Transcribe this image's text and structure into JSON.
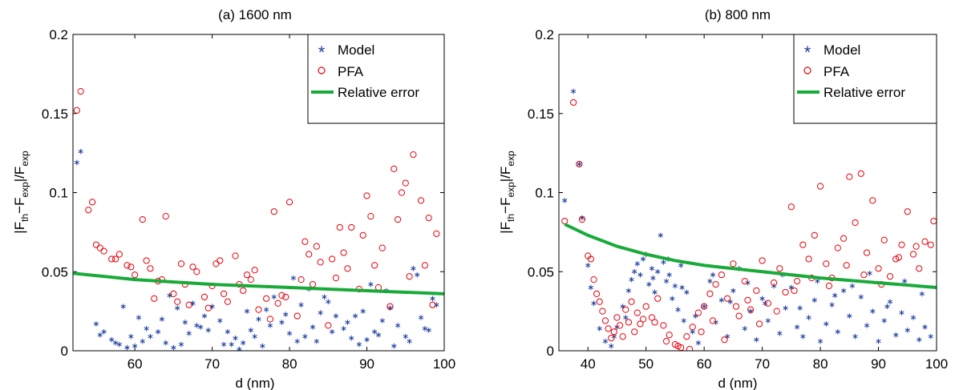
{
  "figure": {
    "panels": [
      {
        "title": "(a) 1600 nm",
        "xlabel": "d (nm)",
        "ylabel_main": "|F",
        "ylabel_sub1": "th",
        "ylabel_mid": "−F",
        "ylabel_sub2": "exp",
        "ylabel_tail": "|/F",
        "ylabel_sub3": "exp",
        "legend": [
          "Model",
          "PFA",
          "Relative error"
        ]
      },
      {
        "title": "(b) 800 nm",
        "xlabel": "d (nm)",
        "ylabel_main": "|F",
        "ylabel_sub1": "th",
        "ylabel_mid": "−F",
        "ylabel_sub2": "exp",
        "ylabel_tail": "|/F",
        "ylabel_sub3": "exp",
        "legend": [
          "Model",
          "PFA",
          "Relative error"
        ]
      }
    ],
    "colors": {
      "model": "#1f3f9f",
      "pfa": "#e8000b",
      "relative_error": "#1aaa3a",
      "axis": "#000000"
    }
  },
  "chart_data": [
    {
      "type": "scatter",
      "title": "(a) 1600 nm",
      "xlabel": "d (nm)",
      "ylabel": "|F_th−F_exp|/F_exp",
      "xlim": [
        52,
        100
      ],
      "ylim": [
        0,
        0.2
      ],
      "xticks": [
        60,
        70,
        80,
        90,
        100
      ],
      "yticks": [
        0,
        0.05,
        0.1,
        0.15,
        0.2
      ],
      "ytick_labels": [
        "0",
        "0.05",
        "0.1",
        "0.15",
        "0.2"
      ],
      "grid": false,
      "legend_position": "top-right",
      "series": [
        {
          "name": "Model",
          "marker": "asterisk",
          "x": [
            52.5,
            53,
            55,
            56,
            57,
            58,
            59,
            60,
            61,
            62,
            63,
            64,
            65,
            66,
            67,
            68,
            69,
            70,
            71,
            72,
            73,
            74,
            75,
            76,
            77,
            78,
            79,
            80,
            81,
            82,
            83,
            84,
            85,
            86,
            87,
            88,
            89,
            90,
            91,
            92,
            93,
            94,
            95,
            96,
            97,
            98,
            99,
            55.5,
            57.5,
            59.5,
            61.5,
            63.5,
            65.5,
            67.5,
            69.5,
            71.5,
            73.5,
            75.5,
            77.5,
            79.5,
            81.5,
            83.5,
            85.5,
            87.5,
            89.5,
            91.5,
            93.5,
            95.5,
            97.5,
            60.5,
            64.5,
            68.5,
            72.5,
            76.5,
            80.5,
            84.5,
            88.5,
            92.5,
            96.5,
            58.5,
            66.5,
            74.5,
            82.5,
            90.5,
            98.5
          ],
          "y": [
            0.119,
            0.126,
            0.017,
            0.012,
            0.007,
            0.004,
            0.002,
            0.003,
            0.006,
            0.009,
            0.012,
            0.005,
            0.002,
            0.004,
            0.011,
            0.016,
            0.022,
            0.028,
            0.019,
            0.012,
            0.008,
            0.005,
            0.013,
            0.02,
            0.026,
            0.034,
            0.018,
            0.011,
            0.006,
            0.009,
            0.015,
            0.024,
            0.031,
            0.022,
            0.014,
            0.008,
            0.004,
            0.007,
            0.012,
            0.019,
            0.027,
            0.016,
            0.009,
            0.052,
            0.021,
            0.013,
            0.029,
            0.01,
            0.005,
            0.009,
            0.014,
            0.02,
            0.027,
            0.03,
            0.013,
            0.004,
            0.001,
            0.009,
            0.016,
            0.023,
            0.029,
            0.006,
            0.012,
            0.018,
            0.025,
            0.01,
            0.003,
            0.006,
            0.014,
            0.021,
            0.035,
            0.015,
            0.004,
            0.003,
            0.046,
            0.034,
            0.022,
            0.038,
            0.048,
            0.028,
            0.018,
            0.025,
            0.039,
            0.042,
            0.033
          ]
        },
        {
          "name": "PFA",
          "marker": "circle",
          "x": [
            52.5,
            53,
            54,
            54.5,
            55,
            56,
            57,
            58,
            59,
            60,
            61,
            62,
            63,
            64,
            65,
            66,
            67,
            68,
            69,
            70,
            71,
            72,
            73,
            74,
            75,
            76,
            77,
            78,
            79,
            80,
            81,
            82,
            83,
            84,
            85,
            86,
            87,
            88,
            89,
            90,
            91,
            92,
            93,
            94,
            95,
            96,
            97,
            98,
            99,
            55.5,
            57.5,
            59.5,
            61.5,
            63.5,
            65.5,
            67.5,
            69.5,
            71.5,
            73.5,
            75.5,
            77.5,
            79.5,
            81.5,
            83.5,
            85.5,
            87.5,
            89.5,
            91.5,
            93.5,
            95.5,
            97.5,
            62.5,
            66.5,
            70.5,
            74.5,
            78.5,
            82.5,
            86.5,
            90.5,
            94.5,
            98.5
          ],
          "y": [
            0.152,
            0.164,
            0.089,
            0.094,
            0.067,
            0.063,
            0.058,
            0.061,
            0.054,
            0.048,
            0.083,
            0.052,
            0.044,
            0.085,
            0.036,
            0.055,
            0.029,
            0.05,
            0.034,
            0.041,
            0.057,
            0.031,
            0.06,
            0.038,
            0.045,
            0.026,
            0.033,
            0.088,
            0.035,
            0.094,
            0.022,
            0.069,
            0.042,
            0.056,
            0.016,
            0.046,
            0.062,
            0.078,
            0.039,
            0.098,
            0.054,
            0.065,
            0.028,
            0.083,
            0.106,
            0.124,
            0.095,
            0.084,
            0.074,
            0.065,
            0.058,
            0.053,
            0.057,
            0.045,
            0.031,
            0.053,
            0.027,
            0.036,
            0.042,
            0.051,
            0.02,
            0.034,
            0.045,
            0.066,
            0.058,
            0.052,
            0.073,
            0.04,
            0.115,
            0.047,
            0.054,
            0.033,
            0.042,
            0.055,
            0.048,
            0.03,
            0.061,
            0.078,
            0.085,
            0.1,
            0.029
          ]
        },
        {
          "name": "Relative error",
          "marker": "line",
          "x": [
            52,
            60,
            70,
            80,
            90,
            100
          ],
          "y": [
            0.049,
            0.045,
            0.042,
            0.04,
            0.038,
            0.036
          ]
        }
      ]
    },
    {
      "type": "scatter",
      "title": "(b) 800 nm",
      "xlabel": "d (nm)",
      "ylabel": "|F_th−F_exp|/F_exp",
      "xlim": [
        35,
        100
      ],
      "ylim": [
        0,
        0.2
      ],
      "xticks": [
        40,
        50,
        60,
        70,
        80,
        90,
        100
      ],
      "yticks": [
        0,
        0.05,
        0.1,
        0.15,
        0.2
      ],
      "ytick_labels": [
        "0",
        "0.05",
        "0.1",
        "0.15",
        "0.2"
      ],
      "grid": false,
      "legend_position": "top-right",
      "series": [
        {
          "name": "Model",
          "marker": "asterisk",
          "x": [
            36,
            37.5,
            38.5,
            39,
            40,
            40.5,
            41,
            42,
            43,
            44,
            45,
            46,
            47,
            47.5,
            48,
            48.5,
            49,
            49.5,
            50,
            50.5,
            51,
            51.5,
            52,
            52.5,
            53,
            53.5,
            54,
            54.5,
            55,
            55.5,
            56,
            56.5,
            57,
            58,
            59,
            60,
            61,
            62,
            63,
            64,
            65,
            66,
            67,
            68,
            69,
            70,
            71,
            72,
            73,
            74,
            75,
            76,
            77,
            78,
            79,
            80,
            81,
            82,
            83,
            84,
            85,
            86,
            87,
            88,
            89,
            90,
            91,
            92,
            93,
            94,
            95,
            96,
            97,
            98,
            99,
            44.5,
            46.5,
            51.2,
            53.8,
            56.2,
            58.5,
            61.5,
            64.5,
            67.5,
            70.5,
            73.5,
            76.5,
            79.5,
            82.5,
            85.5,
            88.5,
            91.5,
            94.5,
            97.5
          ],
          "y": [
            0.095,
            0.164,
            0.118,
            0.084,
            0.054,
            0.04,
            0.03,
            0.014,
            0.006,
            0.003,
            0.015,
            0.028,
            0.038,
            0.045,
            0.05,
            0.055,
            0.048,
            0.058,
            0.061,
            0.042,
            0.052,
            0.037,
            0.05,
            0.073,
            0.056,
            0.044,
            0.048,
            0.033,
            0.041,
            0.026,
            0.054,
            0.019,
            0.037,
            0.012,
            0.005,
            0.028,
            0.044,
            0.018,
            0.032,
            0.009,
            0.038,
            0.052,
            0.014,
            0.025,
            0.007,
            0.033,
            0.019,
            0.041,
            0.011,
            0.027,
            0.04,
            0.015,
            0.009,
            0.021,
            0.032,
            0.006,
            0.017,
            0.029,
            0.012,
            0.038,
            0.022,
            0.009,
            0.034,
            0.016,
            0.025,
            0.006,
            0.019,
            0.031,
            0.01,
            0.024,
            0.013,
            0.021,
            0.007,
            0.015,
            0.009,
            0.009,
            0.021,
            0.046,
            0.058,
            0.04,
            0.022,
            0.048,
            0.031,
            0.043,
            0.03,
            0.048,
            0.027,
            0.044,
            0.035,
            0.041,
            0.049,
            0.028,
            0.044,
            0.036
          ]
        },
        {
          "name": "PFA",
          "marker": "circle",
          "x": [
            36,
            37.5,
            38.5,
            39,
            40,
            40.5,
            41,
            41.5,
            42,
            42.5,
            43,
            43.5,
            44,
            44.5,
            45,
            45.5,
            46,
            46.5,
            47,
            47.5,
            48,
            48.5,
            49,
            50,
            51,
            52,
            53,
            54,
            55,
            56,
            57,
            58,
            59,
            60,
            61,
            62,
            63,
            64,
            65,
            66,
            67,
            68,
            69,
            70,
            71,
            72,
            73,
            74,
            75,
            76,
            77,
            78,
            79,
            80,
            81,
            82,
            83,
            84,
            85,
            86,
            87,
            88,
            89,
            90,
            91,
            92,
            93,
            94,
            95,
            96,
            97,
            98,
            99,
            99.5,
            49.5,
            51.5,
            53.5,
            55.5,
            57.5,
            59.5,
            61.5,
            63.5,
            65.5,
            67.5,
            69.5,
            72.5,
            75.5,
            78.5,
            81.5,
            84.5,
            87.5,
            90.5,
            93.5,
            96.5
          ],
          "y": [
            0.082,
            0.157,
            0.118,
            0.083,
            0.06,
            0.058,
            0.045,
            0.036,
            0.031,
            0.025,
            0.019,
            0.014,
            0.008,
            0.012,
            0.021,
            0.016,
            0.009,
            0.026,
            0.018,
            0.031,
            0.012,
            0.024,
            0.017,
            0.028,
            0.021,
            0.033,
            0.016,
            0.01,
            0.004,
            0.002,
            0.009,
            0.015,
            0.024,
            0.028,
            0.036,
            0.042,
            0.048,
            0.033,
            0.055,
            0.022,
            0.044,
            0.026,
            0.038,
            0.057,
            0.03,
            0.043,
            0.052,
            0.037,
            0.091,
            0.044,
            0.067,
            0.058,
            0.073,
            0.104,
            0.055,
            0.046,
            0.065,
            0.071,
            0.11,
            0.081,
            0.112,
            0.062,
            0.095,
            0.052,
            0.07,
            0.047,
            0.058,
            0.067,
            0.088,
            0.061,
            0.052,
            0.069,
            0.067,
            0.082,
            0.02,
            0.018,
            0.006,
            0.003,
            0.001,
            0.012,
            0.019,
            0.007,
            0.028,
            0.032,
            0.017,
            0.025,
            0.038,
            0.046,
            0.041,
            0.054,
            0.048,
            0.042,
            0.059,
            0.066
          ]
        },
        {
          "name": "Relative error",
          "marker": "line",
          "x": [
            36,
            40,
            45,
            50,
            55,
            60,
            70,
            80,
            90,
            100
          ],
          "y": [
            0.08,
            0.073,
            0.066,
            0.061,
            0.057,
            0.054,
            0.05,
            0.046,
            0.043,
            0.04
          ]
        }
      ]
    }
  ]
}
